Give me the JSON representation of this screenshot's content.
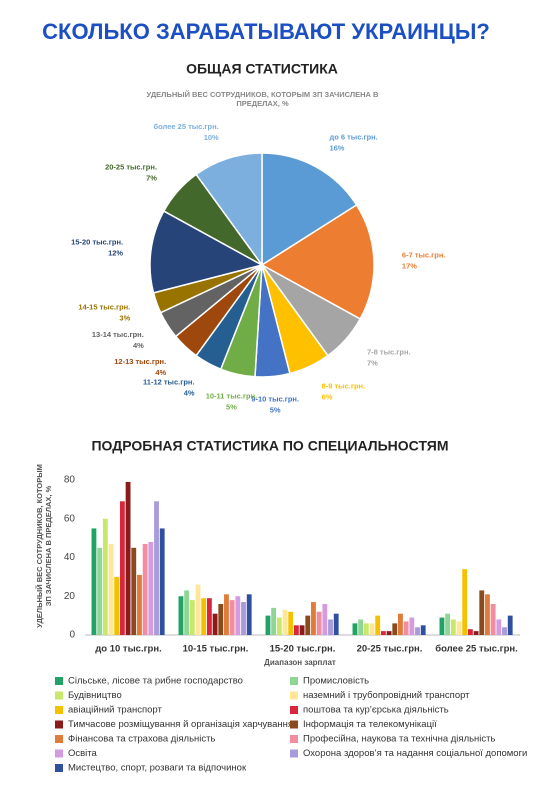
{
  "title": "СКОЛЬКО ЗАРАБАТЫВАЮТ УКРАИНЦЫ?",
  "chart_data": [
    {
      "type": "pie",
      "title": "ОБЩАЯ СТАТИСТИКА",
      "subtitle": "УДЕЛЬНЫЙ ВЕС СОТРУДНИКОВ, КОТОРЫМ ЗП ЗАЧИСЛЕНА В ПРЕДЕЛАХ, %",
      "categories": [
        "до 6 тыс.грн.",
        "6-7 тыс.грн.",
        "7-8 тыс.грн.",
        "8-9 тыс.грн.",
        "9-10 тыс.грн.",
        "10-11 тыс.грн.",
        "11-12 тыс.грн.",
        "12-13 тыс.грн.",
        "13-14 тыс.грн.",
        "14-15 тыс.грн.",
        "15-20 тыс.грн.",
        "20-25 тыс.грн.",
        "более 25 тыс.грн."
      ],
      "values": [
        16,
        17,
        7,
        6,
        5,
        5,
        4,
        4,
        4,
        3,
        12,
        7,
        10
      ],
      "value_labels": [
        "16%",
        "17%",
        "7%",
        "6%",
        "5%",
        "5%",
        "4%",
        "4%",
        "4%",
        "3%",
        "12%",
        "7%",
        "10%"
      ],
      "colors": [
        "#5b9bd5",
        "#ed7d31",
        "#a5a5a5",
        "#ffc000",
        "#4472c4",
        "#70ad47",
        "#255e91",
        "#9e480e",
        "#636363",
        "#997300",
        "#264478",
        "#43682b",
        "#7cafdd"
      ]
    },
    {
      "type": "bar",
      "title": "ПОДРОБНАЯ СТАТИСТИКА ПО СПЕЦИАЛЬНОСТЯМ",
      "x_label": "Диапазон зарплат",
      "y_label": "УДЕЛЬНЫЙ ВЕС СОТРУДНИКОВ, КОТОРЫМ ЗП ЗАЧИСЛЕНА В ПРЕДЕЛАХ, %",
      "categories": [
        "до 10 тыс.грн.",
        "10-15 тыс.грн.",
        "15-20 тыс.грн.",
        "20-25 тыс.грн.",
        "более 25 тыс.грн."
      ],
      "ylim": [
        0,
        80
      ],
      "yticks": [
        0,
        20,
        40,
        60,
        80
      ],
      "grid": false,
      "series": [
        {
          "name": "Сільське, лісове та рибне господарство",
          "color": "#21a366",
          "values": [
            55,
            20,
            10,
            6,
            9
          ]
        },
        {
          "name": "Промисловість",
          "color": "#8fd694",
          "values": [
            45,
            23,
            14,
            8,
            11
          ]
        },
        {
          "name": "Будівництво",
          "color": "#c8e86b",
          "values": [
            60,
            18,
            9,
            6,
            8
          ]
        },
        {
          "name": "наземний і трубопровідний транспорт",
          "color": "#ffe699",
          "values": [
            47,
            26,
            13,
            6,
            7
          ]
        },
        {
          "name": "авіаційний транспорт",
          "color": "#f5c000",
          "values": [
            30,
            19,
            12,
            10,
            34
          ]
        },
        {
          "name": "поштова та кур’єрська діяльність",
          "color": "#d7263d",
          "values": [
            69,
            19,
            5,
            2,
            3
          ]
        },
        {
          "name": "Тимчасове розміщування й організація харчування",
          "color": "#8b1a1a",
          "values": [
            79,
            11,
            5,
            2,
            2
          ]
        },
        {
          "name": "Інформація та телекомунікації",
          "color": "#8b4a1c",
          "values": [
            45,
            16,
            10,
            6,
            23
          ]
        },
        {
          "name": "Фінансова та страхова діяльність",
          "color": "#e07b39",
          "values": [
            31,
            21,
            17,
            11,
            21
          ]
        },
        {
          "name": "Професійна, наукова та технічна діяльність",
          "color": "#f28ca0",
          "values": [
            47,
            18,
            12,
            7,
            16
          ]
        },
        {
          "name": "Освіта",
          "color": "#d39be0",
          "values": [
            48,
            20,
            16,
            9,
            8
          ]
        },
        {
          "name": "Охорона здоров’я та надання соціальної допомоги",
          "color": "#a99bd9",
          "values": [
            69,
            17,
            8,
            4,
            4
          ]
        },
        {
          "name": "Мистецтво, спорт, розваги та відпочинок",
          "color": "#2f4fa0",
          "values": [
            55,
            21,
            11,
            5,
            10
          ]
        }
      ]
    }
  ]
}
